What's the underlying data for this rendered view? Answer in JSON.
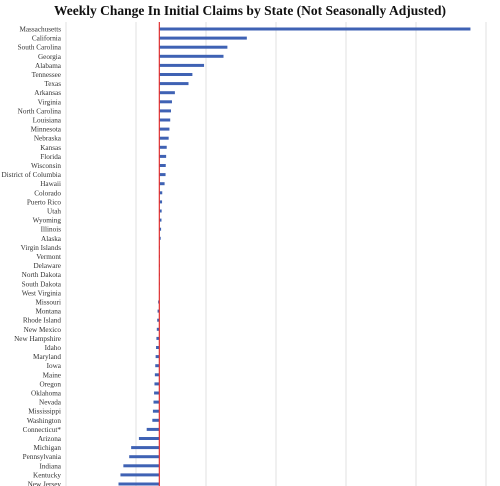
{
  "chart_data": {
    "type": "bar",
    "orientation": "horizontal",
    "title": "Weekly Change In Initial Claims by State (Not Seasonally Adjusted)",
    "xlabel": "",
    "ylabel": "",
    "grid": true,
    "legend": "none",
    "xlim": [
      -4800,
      16800
    ],
    "bar_color": "#3f62b4",
    "zero_line_color": "#e03030",
    "categories": [
      "Massachusetts",
      "California",
      "South Carolina",
      "Georgia",
      "Alabama",
      "Tennessee",
      "Texas",
      "Arkansas",
      "Virginia",
      "North Carolina",
      "Louisiana",
      "Minnesota",
      "Nebraska",
      "Kansas",
      "Florida",
      "Wisconsin",
      "District of Columbia",
      "Hawaii",
      "Colorado",
      "Puerto Rico",
      "Utah",
      "Wyoming",
      "Illinois",
      "Alaska",
      "Virgin Islands",
      "Vermont",
      "Delaware",
      "North Dakota",
      "South Dakota",
      "West Virginia",
      "Missouri",
      "Montana",
      "Rhode Island",
      "New Mexico",
      "New Hampshire",
      "Idaho",
      "Maryland",
      "Iowa",
      "Maine",
      "Oregon",
      "Oklahoma",
      "Nevada",
      "Mississippi",
      "Washington",
      "Connecticut*",
      "Arizona",
      "Michigan",
      "Pennsylvania",
      "Indiana",
      "Kentucky",
      "New Jersey"
    ],
    "values": [
      16000,
      4500,
      3500,
      3300,
      2300,
      1700,
      1500,
      800,
      650,
      600,
      560,
      520,
      480,
      380,
      350,
      330,
      320,
      270,
      150,
      140,
      120,
      110,
      90,
      70,
      30,
      20,
      10,
      5,
      -5,
      -10,
      -60,
      -90,
      -110,
      -130,
      -150,
      -170,
      -190,
      -210,
      -230,
      -250,
      -270,
      -300,
      -330,
      -360,
      -650,
      -1050,
      -1450,
      -1550,
      -1850,
      -2000,
      -2100
    ]
  }
}
